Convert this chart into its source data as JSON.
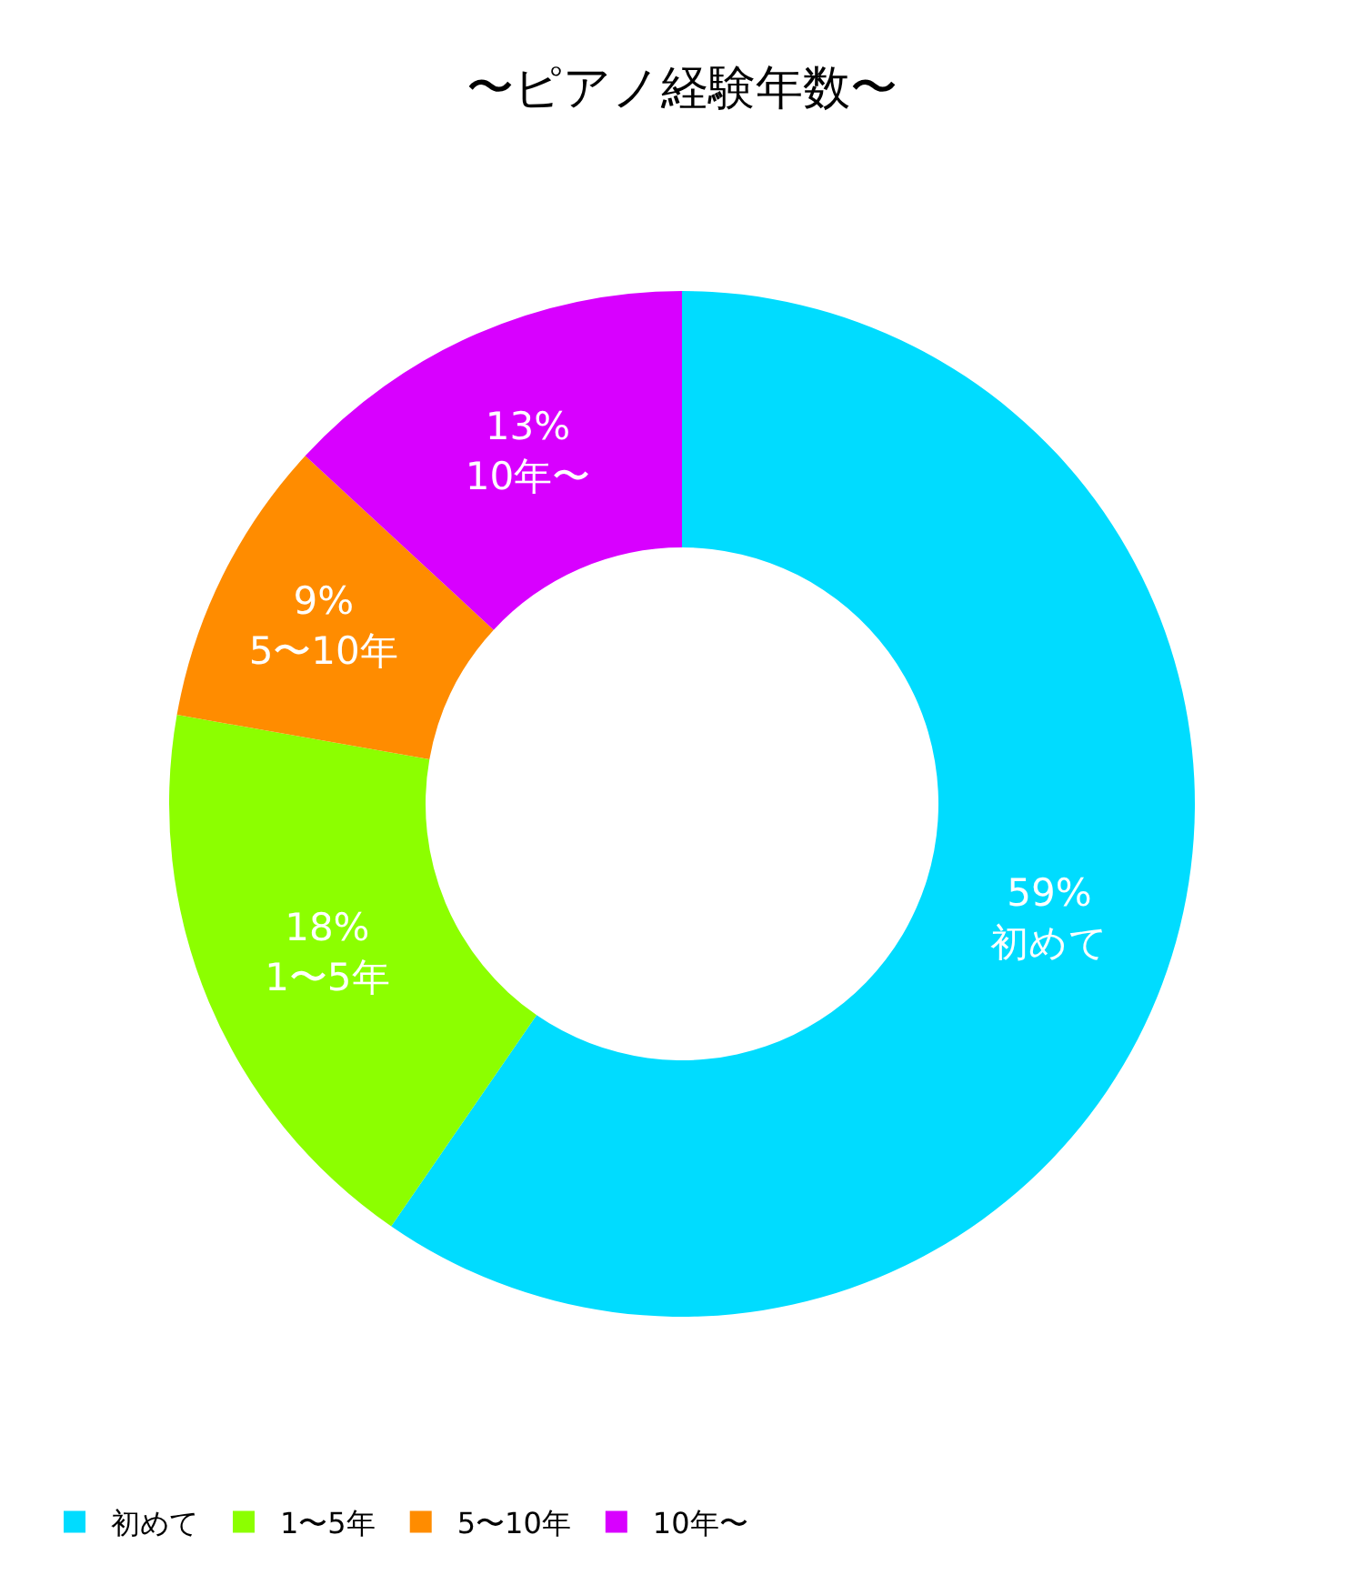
{
  "chart_data": {
    "type": "donut",
    "title": "〜ピアノ経験年数〜",
    "categories": [
      "初めて",
      "1〜5年",
      "5〜10年",
      "10年〜"
    ],
    "values": [
      59,
      18,
      9,
      13
    ],
    "value_labels": [
      "59%",
      "18%",
      "9%",
      "13%"
    ],
    "colors": [
      "#00dcff",
      "#8cff00",
      "#ff8c00",
      "#d800ff"
    ],
    "legend": "bottom left"
  }
}
